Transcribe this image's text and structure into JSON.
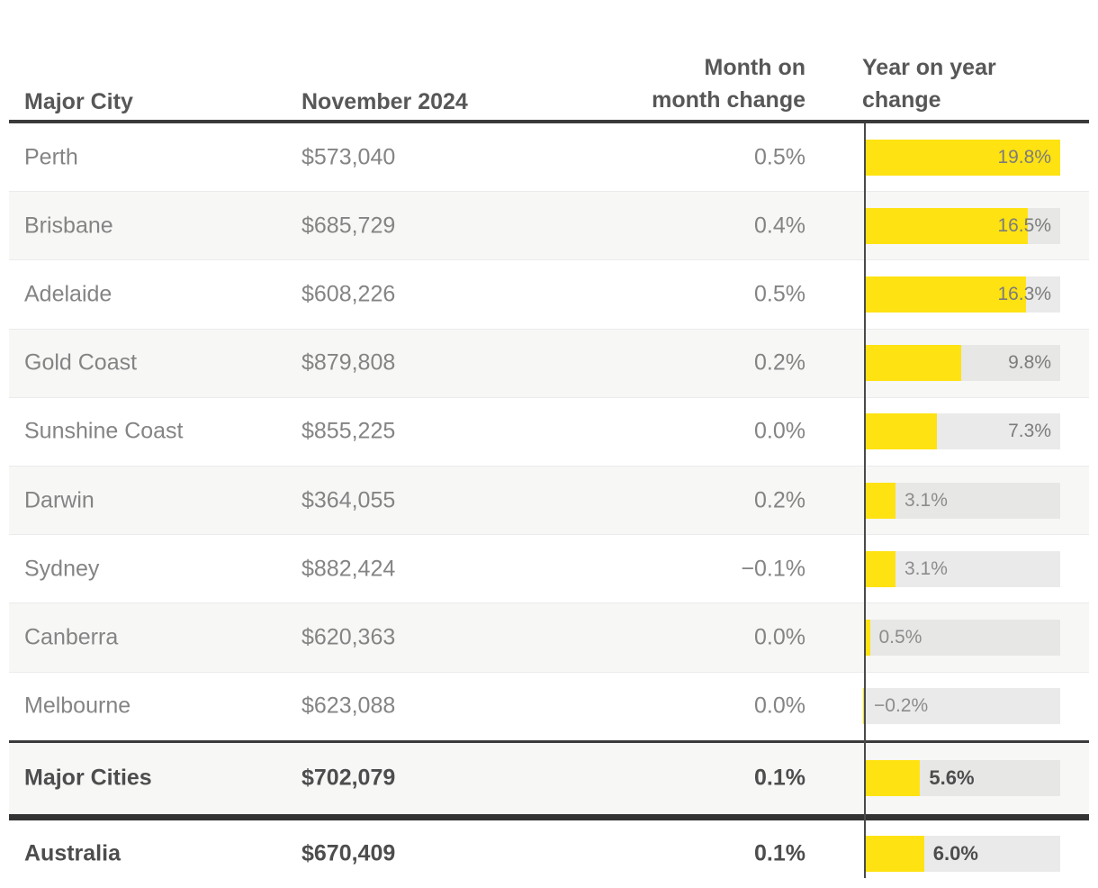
{
  "header": {
    "city": "Major City",
    "value": "November 2024",
    "mom_line1": "Month on",
    "mom_line2": "month change",
    "yoy_line1": "Year on year",
    "yoy_line2": "change"
  },
  "colors": {
    "bar_yellow": "#ffe212",
    "bar_track_gray": "#e7e7e6",
    "row_shade": "#f7f7f6",
    "rule_dark": "#3b3b3b",
    "header_text": "#575757",
    "body_text": "#848484",
    "emphasis_text": "#4d4d4d"
  },
  "chart_data": {
    "type": "bar",
    "title": "Year on year change",
    "orientation": "horizontal",
    "categories": [
      "Perth",
      "Brisbane",
      "Adelaide",
      "Gold Coast",
      "Sunshine Coast",
      "Darwin",
      "Sydney",
      "Canberra",
      "Melbourne",
      "Major Cities",
      "Australia"
    ],
    "values": [
      19.8,
      16.5,
      16.3,
      9.8,
      7.3,
      3.1,
      3.1,
      0.5,
      -0.2,
      5.6,
      6.0
    ],
    "xlim": [
      0,
      19.8
    ],
    "bar_color": "#ffe212",
    "track_color": "#e7e7e6",
    "grid": false,
    "legend": "none"
  },
  "table": {
    "rows": [
      {
        "city": "Perth",
        "value": "$573,040",
        "mom": "0.5%",
        "yoy": 19.8,
        "yoy_label": "19.8%",
        "label_position": "inside",
        "shaded": false,
        "emphasis": false,
        "rule_before": null
      },
      {
        "city": "Brisbane",
        "value": "$685,729",
        "mom": "0.4%",
        "yoy": 16.5,
        "yoy_label": "16.5%",
        "label_position": "inside",
        "shaded": true,
        "emphasis": false,
        "rule_before": null
      },
      {
        "city": "Adelaide",
        "value": "$608,226",
        "mom": "0.5%",
        "yoy": 16.3,
        "yoy_label": "16.3%",
        "label_position": "inside",
        "shaded": false,
        "emphasis": false,
        "rule_before": null
      },
      {
        "city": "Gold Coast",
        "value": "$879,808",
        "mom": "0.2%",
        "yoy": 9.8,
        "yoy_label": "9.8%",
        "label_position": "inside",
        "shaded": true,
        "emphasis": false,
        "rule_before": null
      },
      {
        "city": "Sunshine Coast",
        "value": "$855,225",
        "mom": "0.0%",
        "yoy": 7.3,
        "yoy_label": "7.3%",
        "label_position": "inside",
        "shaded": false,
        "emphasis": false,
        "rule_before": null
      },
      {
        "city": "Darwin",
        "value": "$364,055",
        "mom": "0.2%",
        "yoy": 3.1,
        "yoy_label": "3.1%",
        "label_position": "outside",
        "shaded": true,
        "emphasis": false,
        "rule_before": null
      },
      {
        "city": "Sydney",
        "value": "$882,424",
        "mom": "−0.1%",
        "yoy": 3.1,
        "yoy_label": "3.1%",
        "label_position": "outside",
        "shaded": false,
        "emphasis": false,
        "rule_before": null
      },
      {
        "city": "Canberra",
        "value": "$620,363",
        "mom": "0.0%",
        "yoy": 0.5,
        "yoy_label": "0.5%",
        "label_position": "outside",
        "shaded": true,
        "emphasis": false,
        "rule_before": null
      },
      {
        "city": "Melbourne",
        "value": "$623,088",
        "mom": "0.0%",
        "yoy": -0.2,
        "yoy_label": "−0.2%",
        "label_position": "outside",
        "shaded": false,
        "emphasis": false,
        "rule_before": null
      },
      {
        "city": "Major Cities",
        "value": "$702,079",
        "mom": "0.1%",
        "yoy": 5.6,
        "yoy_label": "5.6%",
        "label_position": "outside",
        "shaded": true,
        "emphasis": true,
        "rule_before": "thin"
      },
      {
        "city": "Australia",
        "value": "$670,409",
        "mom": "0.1%",
        "yoy": 6.0,
        "yoy_label": "6.0%",
        "label_position": "outside",
        "shaded": false,
        "emphasis": true,
        "rule_before": "thick"
      }
    ]
  }
}
